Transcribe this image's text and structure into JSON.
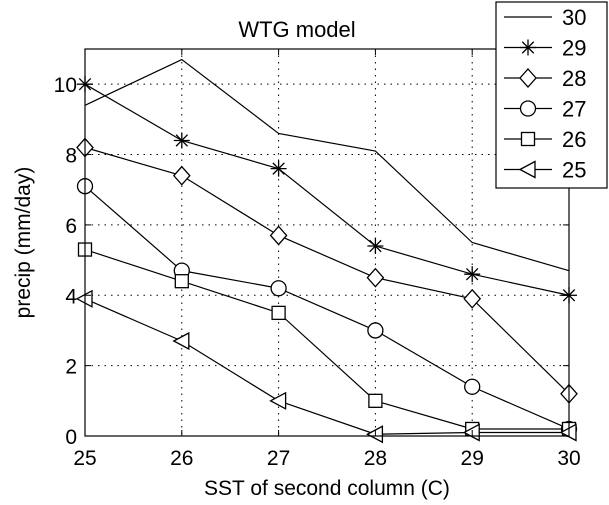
{
  "chart_data": {
    "type": "line",
    "title": "WTG model",
    "xlabel": "SST of second column (C)",
    "ylabel": "precip (mm/day)",
    "x": [
      25,
      26,
      27,
      28,
      29,
      30
    ],
    "xlim": [
      25,
      30
    ],
    "ylim": [
      0,
      11
    ],
    "xticks": [
      "25",
      "26",
      "27",
      "28",
      "29",
      "30"
    ],
    "yticks": [
      "0",
      "2",
      "4",
      "6",
      "8",
      "10"
    ],
    "grid": true,
    "legend_position": "top-right",
    "series": [
      {
        "name": "30",
        "marker": "none",
        "values": [
          9.4,
          10.7,
          8.6,
          8.1,
          5.5,
          4.7
        ]
      },
      {
        "name": "29",
        "marker": "asterisk",
        "values": [
          10.0,
          8.4,
          7.6,
          5.4,
          4.6,
          4.0
        ]
      },
      {
        "name": "28",
        "marker": "diamond",
        "values": [
          8.2,
          7.4,
          5.7,
          4.5,
          3.9,
          1.2
        ]
      },
      {
        "name": "27",
        "marker": "circle",
        "values": [
          7.1,
          4.7,
          4.2,
          3.0,
          1.4,
          0.2
        ]
      },
      {
        "name": "26",
        "marker": "square",
        "values": [
          5.3,
          4.4,
          3.5,
          1.0,
          0.2,
          0.2
        ]
      },
      {
        "name": "25",
        "marker": "triangle-left",
        "values": [
          3.9,
          2.7,
          1.0,
          0.05,
          0.1,
          0.1
        ]
      }
    ]
  }
}
